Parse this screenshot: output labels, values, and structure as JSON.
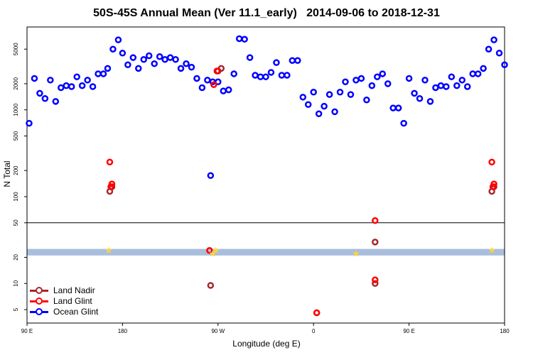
{
  "chart_data": {
    "type": "scatter",
    "title": "50S-45S Annual Mean (Ver 11.1_early)   2014-09-06 to 2018-12-31",
    "xlabel": "Longitude (deg E)",
    "ylabel": "N Total",
    "x_ticks": [
      {
        "label": "90 E",
        "lon": 90
      },
      {
        "label": "180",
        "lon": 180
      },
      {
        "label": "90 W",
        "lon": 270
      },
      {
        "label": "0",
        "lon": 360
      },
      {
        "label": "90 E",
        "lon": 450
      },
      {
        "label": "180",
        "lon": 540
      }
    ],
    "xlim": [
      90,
      540
    ],
    "y_scale": "log",
    "ylim": [
      3.5,
      9000
    ],
    "y_ticks": [
      5,
      10,
      20,
      50,
      100,
      200,
      500,
      1000,
      2000,
      5000
    ],
    "reference_line": 50,
    "band": {
      "low": 21,
      "high": 25,
      "color": "#a8bedc"
    },
    "legend_position": "bottom-left",
    "series": [
      {
        "name": "Land Nadir",
        "color": "#a52a2a",
        "x": [
          168,
          170,
          263,
          270,
          273,
          363,
          418,
          418,
          528,
          530
        ],
        "y": [
          115,
          130,
          9.5,
          2800,
          3000,
          4.6,
          10,
          30,
          115,
          130
        ]
      },
      {
        "name": "Land Glint",
        "color": "#ff0000",
        "x": [
          168,
          169,
          170,
          262,
          266,
          269,
          363,
          418,
          418,
          528,
          529,
          530
        ],
        "y": [
          250,
          130,
          140,
          24,
          1950,
          2800,
          4.6,
          11,
          53,
          250,
          130,
          140
        ]
      },
      {
        "name": "Ocean Glint",
        "color": "#0000ff",
        "x": [
          92,
          97,
          102,
          107,
          112,
          117,
          122,
          127,
          132,
          137,
          142,
          147,
          152,
          157,
          162,
          166,
          171,
          176,
          180,
          185,
          190,
          195,
          200,
          205,
          210,
          215,
          220,
          225,
          230,
          235,
          240,
          245,
          250,
          255,
          260,
          265,
          270,
          275,
          280,
          285,
          290,
          295,
          300,
          305,
          310,
          315,
          320,
          325,
          330,
          335,
          340,
          345,
          350,
          355,
          360,
          365,
          370,
          375,
          380,
          385,
          390,
          395,
          400,
          405,
          410,
          415,
          420,
          425,
          430,
          435,
          440,
          445,
          450,
          455,
          460,
          465,
          470,
          475,
          480,
          485,
          490,
          495,
          500,
          505,
          510,
          515,
          520,
          525,
          530,
          535,
          540,
          263
        ],
        "y": [
          700,
          2300,
          1550,
          1350,
          2200,
          1250,
          1800,
          1900,
          1850,
          2400,
          1900,
          2200,
          1850,
          2600,
          2600,
          3000,
          5000,
          6400,
          4500,
          3300,
          4000,
          3000,
          3800,
          4200,
          3400,
          4100,
          3800,
          4000,
          3800,
          3000,
          3400,
          3100,
          2300,
          1800,
          2200,
          2100,
          2100,
          1650,
          1700,
          2600,
          6600,
          6500,
          4000,
          2500,
          2400,
          2400,
          2700,
          3500,
          2500,
          2500,
          3700,
          3700,
          1400,
          1150,
          1600,
          900,
          1100,
          1500,
          950,
          1600,
          2100,
          1500,
          2200,
          2300,
          1300,
          1900,
          2400,
          2600,
          2000,
          1050,
          1050,
          700,
          2300,
          1550,
          1350,
          2200,
          1250,
          1800,
          1900,
          1850,
          2400,
          1900,
          2200,
          1850,
          2600,
          2600,
          3000,
          5000,
          6400,
          4500,
          3300,
          175
        ]
      }
    ],
    "markers_star": {
      "color": "#ffd23c",
      "x": [
        167,
        265,
        268,
        400,
        528
      ],
      "y": [
        24,
        22,
        24,
        22,
        24
      ]
    }
  }
}
